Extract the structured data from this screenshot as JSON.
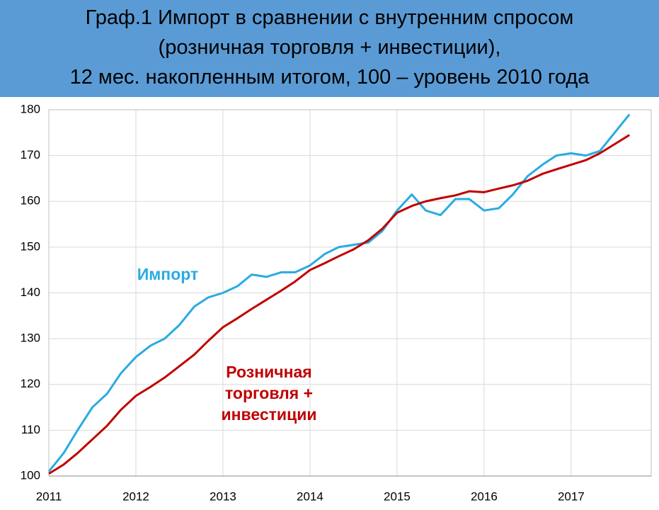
{
  "chart_data": {
    "type": "line",
    "title": "Граф.1 Импорт в сравнении с внутренним спросом\n(розничная торговля + инвестиции),\n12 мес. накопленным итогом, 100 – уровень 2010 года",
    "x": [
      2011,
      2011.17,
      2011.33,
      2011.5,
      2011.67,
      2011.83,
      2012,
      2012.17,
      2012.33,
      2012.5,
      2012.67,
      2012.83,
      2013,
      2013.17,
      2013.33,
      2013.5,
      2013.67,
      2013.83,
      2014,
      2014.17,
      2014.33,
      2014.5,
      2014.67,
      2014.83,
      2015,
      2015.17,
      2015.33,
      2015.5,
      2015.67,
      2015.83,
      2016,
      2016.17,
      2016.33,
      2016.5,
      2016.67,
      2016.83,
      2017,
      2017.17,
      2017.33,
      2017.5,
      2017.67
    ],
    "series": [
      {
        "name": "Импорт",
        "color": "#29abe2",
        "values": [
          101,
          105,
          110,
          115,
          118,
          122.5,
          126,
          128.5,
          130,
          133,
          137,
          139,
          140,
          141.5,
          144,
          143.5,
          144.5,
          144.5,
          146,
          148.5,
          150,
          150.5,
          151,
          153.5,
          158,
          161.5,
          158,
          157,
          160.5,
          160.5,
          158,
          158.5,
          161.5,
          165.5,
          168,
          170,
          170.5,
          170,
          171,
          175,
          179
        ]
      },
      {
        "name": "Розничная торговля + инвестиции",
        "color": "#c00000",
        "values": [
          100.5,
          102.5,
          105,
          108,
          111,
          114.5,
          117.5,
          119.5,
          121.5,
          124,
          126.5,
          129.5,
          132.5,
          134.5,
          136.5,
          138.5,
          140.5,
          142.5,
          145,
          146.5,
          148,
          149.5,
          151.5,
          154,
          157.5,
          159,
          160,
          160.7,
          161.3,
          162.2,
          162,
          162.8,
          163.5,
          164.5,
          166,
          167,
          168,
          169,
          170.5,
          172.5,
          174.5
        ]
      }
    ],
    "xlim": [
      2011,
      2017.92
    ],
    "xticks": [
      2011,
      2012,
      2013,
      2014,
      2015,
      2016,
      2017
    ],
    "ylim": [
      100,
      180
    ],
    "yticks": [
      100,
      110,
      120,
      130,
      140,
      150,
      160,
      170,
      180
    ],
    "grid": true
  }
}
